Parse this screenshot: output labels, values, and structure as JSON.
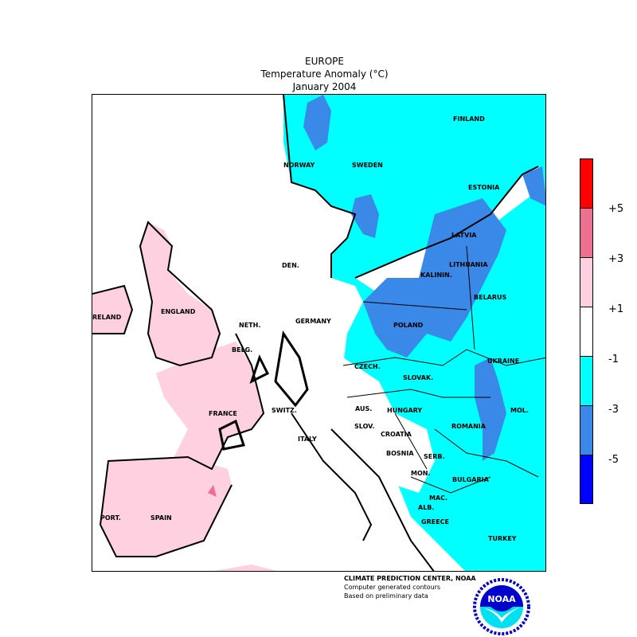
{
  "header": {
    "region": "EUROPE",
    "variable": "Temperature Anomaly (°C)",
    "period": "January 2004"
  },
  "legend": {
    "colors": [
      "#ff0000",
      "#ee7090",
      "#ffd0e0",
      "#ffffff",
      "#00ffff",
      "#3a88e8",
      "#0000ff"
    ],
    "ticks": [
      "+5",
      "+3",
      "+1",
      "-1",
      "-3",
      "-5"
    ]
  },
  "map": {
    "colors": {
      "warm_1_3": "#ffd0e0",
      "near_normal": "#ffffff",
      "cold_1_3": "#00ffff",
      "cold_3_5": "#3a88e8",
      "warm_3_5": "#ee7090"
    },
    "labels": [
      "FINLAND",
      "NORWAY",
      "SWEDEN",
      "ESTONIA",
      "LATVIA",
      "DEN.",
      "LITHUANIA",
      "KALININ.",
      "BELARUS",
      "RELAND",
      "ENGLAND",
      "NETH.",
      "GERMANY",
      "POLAND",
      "BELG.",
      "CZECH.",
      "UKRAINE",
      "SLOVAK.",
      "FRANCE",
      "SWITZ.",
      "AUS.",
      "HUNGARY",
      "MOL.",
      "SLOV.",
      "CROATIA",
      "ROMANIA",
      "ITALY",
      "BOSNIA",
      "SERB.",
      "MON.",
      "BULGARIA",
      "MAC.",
      "ALB.",
      "PORT.",
      "SPAIN",
      "GREECE",
      "TURKEY"
    ]
  },
  "footer": {
    "line1": "CLIMATE PREDICTION CENTER, NOAA",
    "line2": "Computer generated contours",
    "line3": "Based on preliminary data",
    "logo_text": "NOAA"
  }
}
